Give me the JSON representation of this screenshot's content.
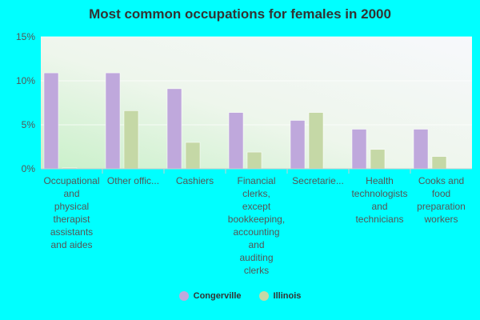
{
  "chart_data": {
    "type": "bar",
    "title": "Most common occupations for females in 2000",
    "categories": [
      [
        "Occupational",
        "and",
        "physical",
        "therapist",
        "assistants",
        "and aides"
      ],
      [
        "Other offic..."
      ],
      [
        "Cashiers"
      ],
      [
        "Financial",
        "clerks,",
        "except",
        "bookkeeping,",
        "accounting",
        "and",
        "auditing",
        "clerks"
      ],
      [
        "Secretarie..."
      ],
      [
        "Health",
        "technologists",
        "and",
        "technicians"
      ],
      [
        "Cooks and",
        "food",
        "preparation",
        "workers"
      ]
    ],
    "series": [
      {
        "name": "Congerville",
        "color": "#bfa8dc",
        "values": [
          10.9,
          10.9,
          9.1,
          6.4,
          5.5,
          4.5,
          4.5
        ]
      },
      {
        "name": "Illinois",
        "color": "#c5d8a6",
        "values": [
          0.1,
          6.6,
          3.0,
          1.9,
          6.4,
          2.2,
          1.4
        ]
      }
    ],
    "y_ticks": [
      "0%",
      "5%",
      "10%",
      "15%"
    ],
    "ylim": [
      0,
      15
    ],
    "grid": true,
    "legend_position": "bottom"
  }
}
